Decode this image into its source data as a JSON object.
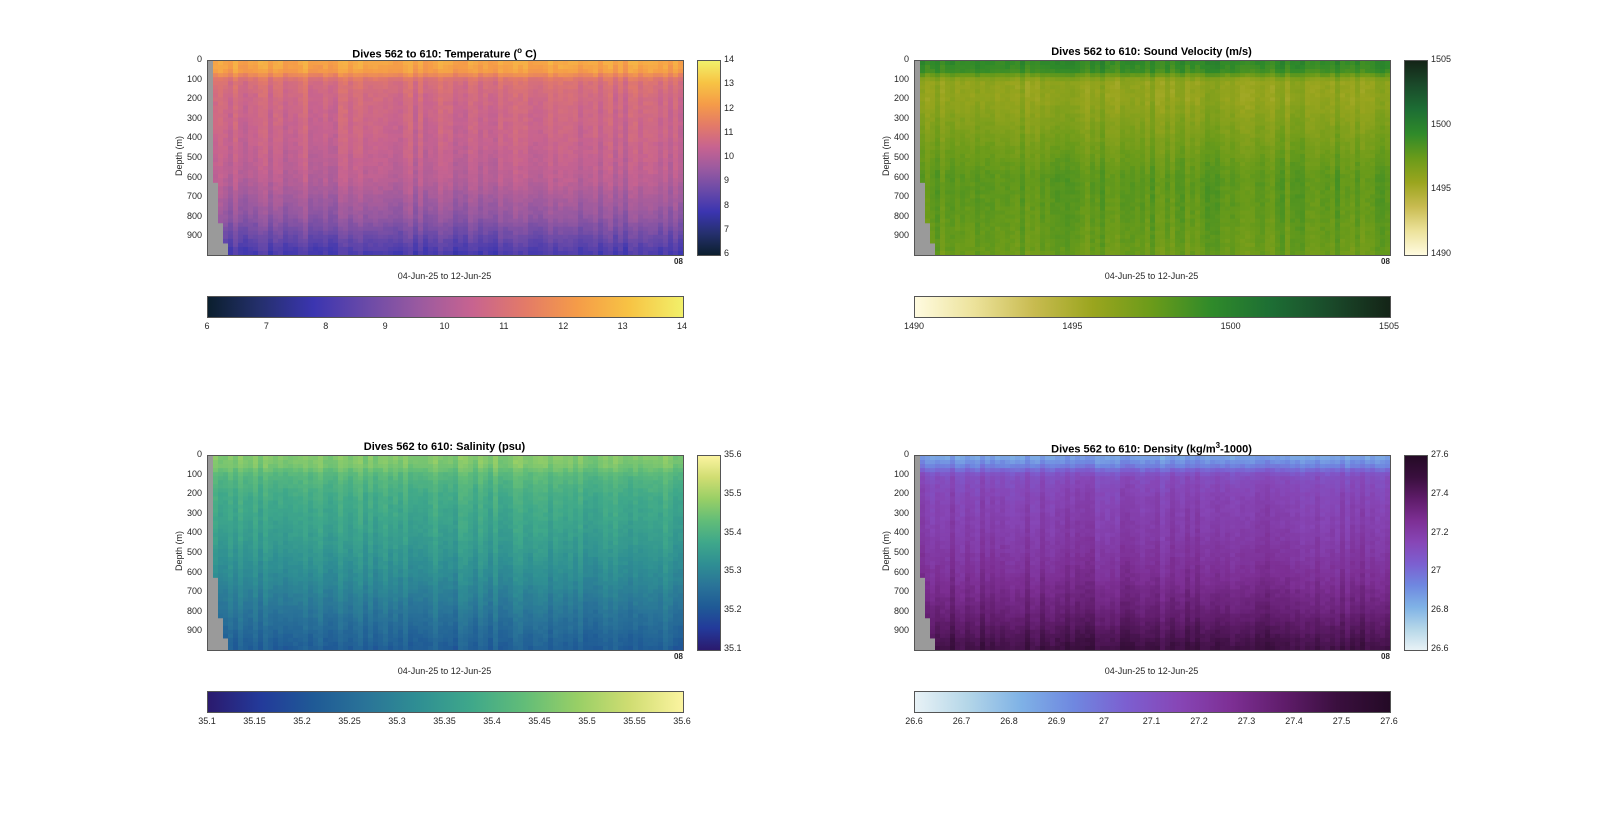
{
  "charts": [
    {
      "id": "temp",
      "title_main": "Dives 562 to 610: Temperature (",
      "title_sup": "o",
      "title_tail": " C)",
      "ylabel": "Depth (m)",
      "xlabel": "04-Jun-25 to 12-Jun-25",
      "corner": "08",
      "yticks": [
        "0",
        "100",
        "200",
        "300",
        "400",
        "500",
        "600",
        "700",
        "800",
        "900"
      ],
      "vcbar_ticks": [
        "14",
        "13",
        "12",
        "11",
        "10",
        "9",
        "8",
        "7",
        "6"
      ],
      "hcbar_ticks": [
        "6",
        "7",
        "8",
        "9",
        "10",
        "11",
        "12",
        "13",
        "14"
      ],
      "colormap": [
        "#0b1f2e",
        "#25306e",
        "#3b35b0",
        "#6a4aa8",
        "#9a5aa0",
        "#c76390",
        "#e37a68",
        "#f59c48",
        "#f7c444",
        "#f2f06a"
      ]
    },
    {
      "id": "sv",
      "title_main": "Dives 562 to 610: Sound Velocity (m/s)",
      "title_sup": "",
      "title_tail": "",
      "ylabel": "Depth (m)",
      "xlabel": "04-Jun-25 to 12-Jun-25",
      "corner": "08",
      "yticks": [
        "0",
        "100",
        "200",
        "300",
        "400",
        "500",
        "600",
        "700",
        "800",
        "900"
      ],
      "vcbar_ticks": [
        "1505",
        "1500",
        "1495",
        "1490"
      ],
      "hcbar_ticks": [
        "1490",
        "1495",
        "1500",
        "1505"
      ],
      "colormap": [
        "#fffbe0",
        "#ece29a",
        "#c8bb50",
        "#9aa51e",
        "#6a9b1a",
        "#2f8a2a",
        "#1d6e34",
        "#1a4a2a",
        "#142417"
      ]
    },
    {
      "id": "sal",
      "title_main": "Dives 562 to 610: Salinity (psu)",
      "title_sup": "",
      "title_tail": "",
      "ylabel": "Depth (m)",
      "xlabel": "04-Jun-25 to 12-Jun-25",
      "corner": "08",
      "yticks": [
        "0",
        "100",
        "200",
        "300",
        "400",
        "500",
        "600",
        "700",
        "800",
        "900"
      ],
      "vcbar_ticks": [
        "35.6",
        "35.5",
        "35.4",
        "35.3",
        "35.2",
        "35.1"
      ],
      "hcbar_ticks": [
        "35.1",
        "35.15",
        "35.2",
        "35.25",
        "35.3",
        "35.35",
        "35.4",
        "35.45",
        "35.5",
        "35.55",
        "35.6"
      ],
      "colormap": [
        "#2b1a6e",
        "#233a9a",
        "#1f5a96",
        "#2a7498",
        "#2f8f93",
        "#3fa88a",
        "#62bd78",
        "#98cf66",
        "#d0dd72",
        "#fbf4a0"
      ]
    },
    {
      "id": "dens",
      "title_main": "Dives 562 to 610: Density (kg/m",
      "title_sup": "3",
      "title_tail": "-1000)",
      "ylabel": "Depth (m)",
      "xlabel": "04-Jun-25 to 12-Jun-25",
      "corner": "08",
      "yticks": [
        "0",
        "100",
        "200",
        "300",
        "400",
        "500",
        "600",
        "700",
        "800",
        "900"
      ],
      "vcbar_ticks": [
        "27.6",
        "27.4",
        "27.2",
        "27",
        "26.8",
        "26.6"
      ],
      "hcbar_ticks": [
        "26.6",
        "26.7",
        "26.8",
        "26.9",
        "27",
        "27.1",
        "27.2",
        "27.3",
        "27.4",
        "27.5",
        "27.6"
      ],
      "colormap": [
        "#e8f2f6",
        "#b4d6e8",
        "#7fb2e6",
        "#6f88e0",
        "#7c5fd0",
        "#8746b6",
        "#7d2f94",
        "#5f1c6a",
        "#3a0f3e",
        "#240a26"
      ]
    }
  ],
  "chart_data": [
    {
      "type": "heatmap",
      "title": "Dives 562 to 610: Temperature (o C)",
      "xlabel": "04-Jun-25 to 12-Jun-25",
      "ylabel": "Depth (m)",
      "ylim": [
        0,
        990
      ],
      "y_reversed": true,
      "color_range": [
        6,
        14
      ],
      "colormap_name": "thermal",
      "depth_profile": [
        {
          "depth": 0,
          "value": 12.5
        },
        {
          "depth": 50,
          "value": 12.3
        },
        {
          "depth": 100,
          "value": 11.0
        },
        {
          "depth": 200,
          "value": 10.7
        },
        {
          "depth": 400,
          "value": 10.5
        },
        {
          "depth": 600,
          "value": 10.2
        },
        {
          "depth": 800,
          "value": 9.4
        },
        {
          "depth": 990,
          "value": 8.0
        }
      ]
    },
    {
      "type": "heatmap",
      "title": "Dives 562 to 610: Sound Velocity (m/s)",
      "xlabel": "04-Jun-25 to 12-Jun-25",
      "ylabel": "Depth (m)",
      "ylim": [
        0,
        990
      ],
      "y_reversed": true,
      "color_range": [
        1490,
        1505
      ],
      "colormap_name": "speed",
      "depth_profile": [
        {
          "depth": 0,
          "value": 1499.5
        },
        {
          "depth": 50,
          "value": 1499.0
        },
        {
          "depth": 100,
          "value": 1496.0
        },
        {
          "depth": 200,
          "value": 1496.0
        },
        {
          "depth": 400,
          "value": 1497.0
        },
        {
          "depth": 600,
          "value": 1498.0
        },
        {
          "depth": 800,
          "value": 1497.8
        },
        {
          "depth": 990,
          "value": 1497.5
        }
      ]
    },
    {
      "type": "heatmap",
      "title": "Dives 562 to 610: Salinity (psu)",
      "xlabel": "04-Jun-25 to 12-Jun-25",
      "ylabel": "Depth (m)",
      "ylim": [
        0,
        990
      ],
      "y_reversed": true,
      "color_range": [
        35.1,
        35.6
      ],
      "colormap_name": "haline",
      "depth_profile": [
        {
          "depth": 0,
          "value": 35.47
        },
        {
          "depth": 50,
          "value": 35.46
        },
        {
          "depth": 100,
          "value": 35.42
        },
        {
          "depth": 200,
          "value": 35.39
        },
        {
          "depth": 400,
          "value": 35.36
        },
        {
          "depth": 600,
          "value": 35.32
        },
        {
          "depth": 800,
          "value": 35.27
        },
        {
          "depth": 990,
          "value": 35.22
        }
      ]
    },
    {
      "type": "heatmap",
      "title": "Dives 562 to 610: Density (kg/m3-1000)",
      "xlabel": "04-Jun-25 to 12-Jun-25",
      "ylabel": "Depth (m)",
      "ylim": [
        0,
        990
      ],
      "y_reversed": true,
      "color_range": [
        26.6,
        27.6
      ],
      "colormap_name": "dense",
      "depth_profile": [
        {
          "depth": 0,
          "value": 26.85
        },
        {
          "depth": 50,
          "value": 26.95
        },
        {
          "depth": 100,
          "value": 27.12
        },
        {
          "depth": 200,
          "value": 27.16
        },
        {
          "depth": 400,
          "value": 27.2
        },
        {
          "depth": 600,
          "value": 27.26
        },
        {
          "depth": 800,
          "value": 27.35
        },
        {
          "depth": 990,
          "value": 27.48
        }
      ]
    }
  ]
}
